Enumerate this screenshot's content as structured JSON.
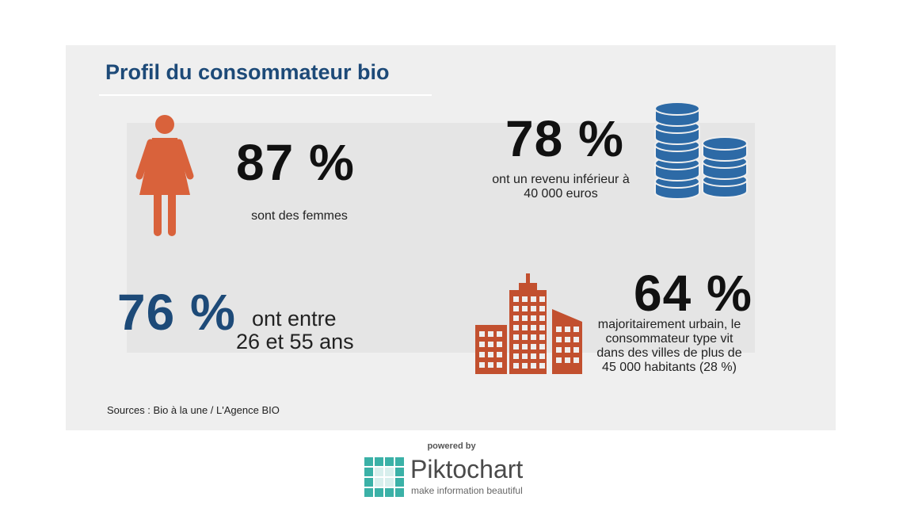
{
  "title": "Profil du consommateur bio",
  "stats": [
    {
      "value": "87 %",
      "lines": [
        "sont des femmes"
      ]
    },
    {
      "value": "78 %",
      "lines": [
        "ont un revenu inférieur à",
        "40 000 euros"
      ]
    },
    {
      "value": "76 %",
      "lines": [
        "ont entre",
        "26 et 55 ans"
      ]
    },
    {
      "value": "64 %",
      "lines": [
        "majoritairement urbain, le",
        "consommateur type vit",
        "dans des villes de plus de",
        "45 000 habitants (28 %)"
      ]
    }
  ],
  "sources": "Sources : Bio à la une / L'Agence BIO",
  "footer": {
    "powered_by": "powered by",
    "brand": "Piktochart",
    "tagline": "make information beautiful"
  }
}
